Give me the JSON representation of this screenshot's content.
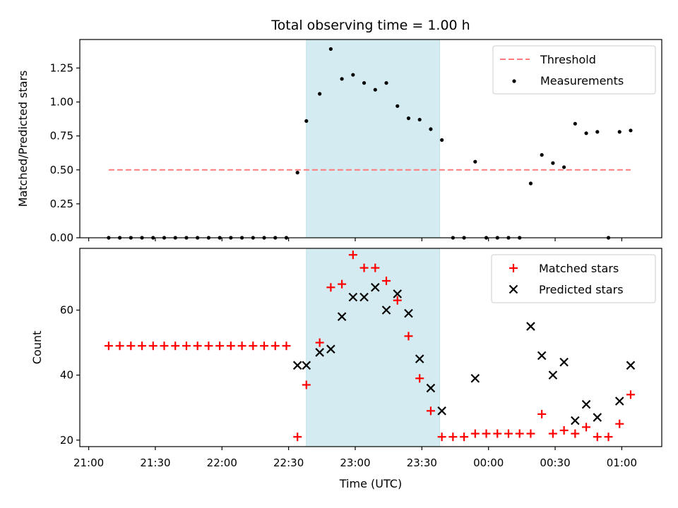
{
  "chart_data": [
    {
      "type": "scatter",
      "title": "Total observing time = 1.00 h",
      "xlabel": "",
      "ylabel": "Matched/Predicted stars",
      "ylim": [
        0,
        1.46
      ],
      "yticks": [
        "0.00",
        "0.25",
        "0.50",
        "0.75",
        "1.00",
        "1.25"
      ],
      "shaded_region": {
        "x_start": "22:38",
        "x_end": "23:38",
        "color": "#d4ebf1"
      },
      "legend_position": "top-right",
      "threshold": {
        "name": "Threshold",
        "value": 0.5,
        "x_start": "21:09",
        "x_end": "01:04",
        "color": "#ff7a7a"
      },
      "series": [
        {
          "name": "Measurements",
          "color": "#000000",
          "marker": "dot",
          "points": [
            [
              "21:09",
              0
            ],
            [
              "21:14",
              0
            ],
            [
              "21:19",
              0
            ],
            [
              "21:24",
              0
            ],
            [
              "21:29",
              0
            ],
            [
              "21:34",
              0
            ],
            [
              "21:39",
              0
            ],
            [
              "21:44",
              0
            ],
            [
              "21:49",
              0
            ],
            [
              "21:54",
              0
            ],
            [
              "21:59",
              0
            ],
            [
              "22:04",
              0
            ],
            [
              "22:09",
              0
            ],
            [
              "22:14",
              0
            ],
            [
              "22:19",
              0
            ],
            [
              "22:24",
              0
            ],
            [
              "22:29",
              0
            ],
            [
              "22:34",
              0.48
            ],
            [
              "22:38",
              0.86
            ],
            [
              "22:44",
              1.06
            ],
            [
              "22:49",
              1.39
            ],
            [
              "22:54",
              1.17
            ],
            [
              "22:59",
              1.2
            ],
            [
              "23:04",
              1.14
            ],
            [
              "23:09",
              1.09
            ],
            [
              "23:14",
              1.14
            ],
            [
              "23:19",
              0.97
            ],
            [
              "23:24",
              0.88
            ],
            [
              "23:29",
              0.87
            ],
            [
              "23:34",
              0.8
            ],
            [
              "23:39",
              0.72
            ],
            [
              "23:44",
              0
            ],
            [
              "23:49",
              0
            ],
            [
              "23:54",
              0.56
            ],
            [
              "23:59",
              0
            ],
            [
              "00:04",
              0
            ],
            [
              "00:09",
              0
            ],
            [
              "00:14",
              0
            ],
            [
              "00:19",
              0.4
            ],
            [
              "00:24",
              0.61
            ],
            [
              "00:29",
              0.55
            ],
            [
              "00:34",
              0.52
            ],
            [
              "00:39",
              0.84
            ],
            [
              "00:44",
              0.77
            ],
            [
              "00:49",
              0.78
            ],
            [
              "00:54",
              0
            ],
            [
              "00:59",
              0.78
            ],
            [
              "01:04",
              0.79
            ]
          ]
        }
      ]
    },
    {
      "type": "scatter",
      "title": "",
      "xlabel": "Time (UTC)",
      "ylabel": "Count",
      "ylim": [
        18,
        79
      ],
      "yticks": [
        "20",
        "40",
        "60"
      ],
      "xticks": [
        "21:00",
        "21:30",
        "22:00",
        "22:30",
        "23:00",
        "23:30",
        "00:00",
        "00:30",
        "01:00"
      ],
      "shaded_region": {
        "x_start": "22:38",
        "x_end": "23:38",
        "color": "#d4ebf1"
      },
      "legend_position": "top-right",
      "series": [
        {
          "name": "Matched stars",
          "color": "#ff0000",
          "marker": "plus",
          "points": [
            [
              "21:09",
              49
            ],
            [
              "21:14",
              49
            ],
            [
              "21:19",
              49
            ],
            [
              "21:24",
              49
            ],
            [
              "21:29",
              49
            ],
            [
              "21:34",
              49
            ],
            [
              "21:39",
              49
            ],
            [
              "21:44",
              49
            ],
            [
              "21:49",
              49
            ],
            [
              "21:54",
              49
            ],
            [
              "21:59",
              49
            ],
            [
              "22:04",
              49
            ],
            [
              "22:09",
              49
            ],
            [
              "22:14",
              49
            ],
            [
              "22:19",
              49
            ],
            [
              "22:24",
              49
            ],
            [
              "22:29",
              49
            ],
            [
              "22:34",
              21
            ],
            [
              "22:38",
              37
            ],
            [
              "22:44",
              50
            ],
            [
              "22:49",
              67
            ],
            [
              "22:54",
              68
            ],
            [
              "22:59",
              77
            ],
            [
              "23:04",
              73
            ],
            [
              "23:09",
              73
            ],
            [
              "23:14",
              69
            ],
            [
              "23:19",
              63
            ],
            [
              "23:24",
              52
            ],
            [
              "23:29",
              39
            ],
            [
              "23:34",
              29
            ],
            [
              "23:39",
              21
            ],
            [
              "23:44",
              21
            ],
            [
              "23:49",
              21
            ],
            [
              "23:54",
              22
            ],
            [
              "23:59",
              22
            ],
            [
              "00:04",
              22
            ],
            [
              "00:09",
              22
            ],
            [
              "00:14",
              22
            ],
            [
              "00:19",
              22
            ],
            [
              "00:24",
              28
            ],
            [
              "00:29",
              22
            ],
            [
              "00:34",
              23
            ],
            [
              "00:39",
              22
            ],
            [
              "00:44",
              24
            ],
            [
              "00:49",
              21
            ],
            [
              "00:54",
              21
            ],
            [
              "00:59",
              25
            ],
            [
              "01:04",
              34
            ]
          ]
        },
        {
          "name": "Predicted stars",
          "color": "#000000",
          "marker": "x",
          "points": [
            [
              "22:34",
              43
            ],
            [
              "22:38",
              43
            ],
            [
              "22:44",
              47
            ],
            [
              "22:49",
              48
            ],
            [
              "22:54",
              58
            ],
            [
              "22:59",
              64
            ],
            [
              "23:04",
              64
            ],
            [
              "23:09",
              67
            ],
            [
              "23:14",
              60
            ],
            [
              "23:19",
              65
            ],
            [
              "23:24",
              59
            ],
            [
              "23:29",
              45
            ],
            [
              "23:34",
              36
            ],
            [
              "23:39",
              29
            ],
            [
              "23:54",
              39
            ],
            [
              "00:19",
              55
            ],
            [
              "00:24",
              46
            ],
            [
              "00:29",
              40
            ],
            [
              "00:34",
              44
            ],
            [
              "00:39",
              26
            ],
            [
              "00:44",
              31
            ],
            [
              "00:49",
              27
            ],
            [
              "00:59",
              32
            ],
            [
              "01:04",
              43
            ]
          ]
        }
      ]
    }
  ]
}
